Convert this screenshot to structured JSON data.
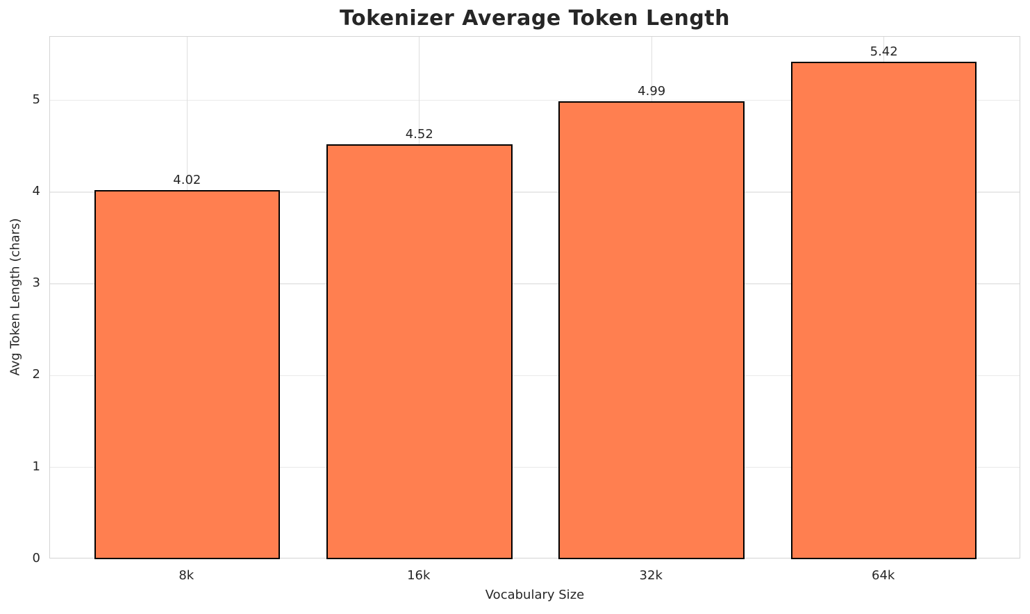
{
  "chart_data": {
    "type": "bar",
    "title": "Tokenizer Average Token Length",
    "xlabel": "Vocabulary Size",
    "ylabel": "Avg Token Length (chars)",
    "categories": [
      "8k",
      "16k",
      "32k",
      "64k"
    ],
    "values": [
      4.02,
      4.52,
      4.99,
      5.42
    ],
    "value_labels": [
      "4.02",
      "4.52",
      "4.99",
      "5.42"
    ],
    "yticks": [
      "0",
      "1",
      "2",
      "3",
      "4",
      "5"
    ],
    "ylim": [
      0,
      5.69
    ],
    "grid": true,
    "legend_position": "none",
    "bar_color": "#FF7F50",
    "bar_edge_color": "#000000",
    "grid_color": "#e9e9e9",
    "spine_color": "#d4d4d4",
    "text_color": "#262626"
  }
}
